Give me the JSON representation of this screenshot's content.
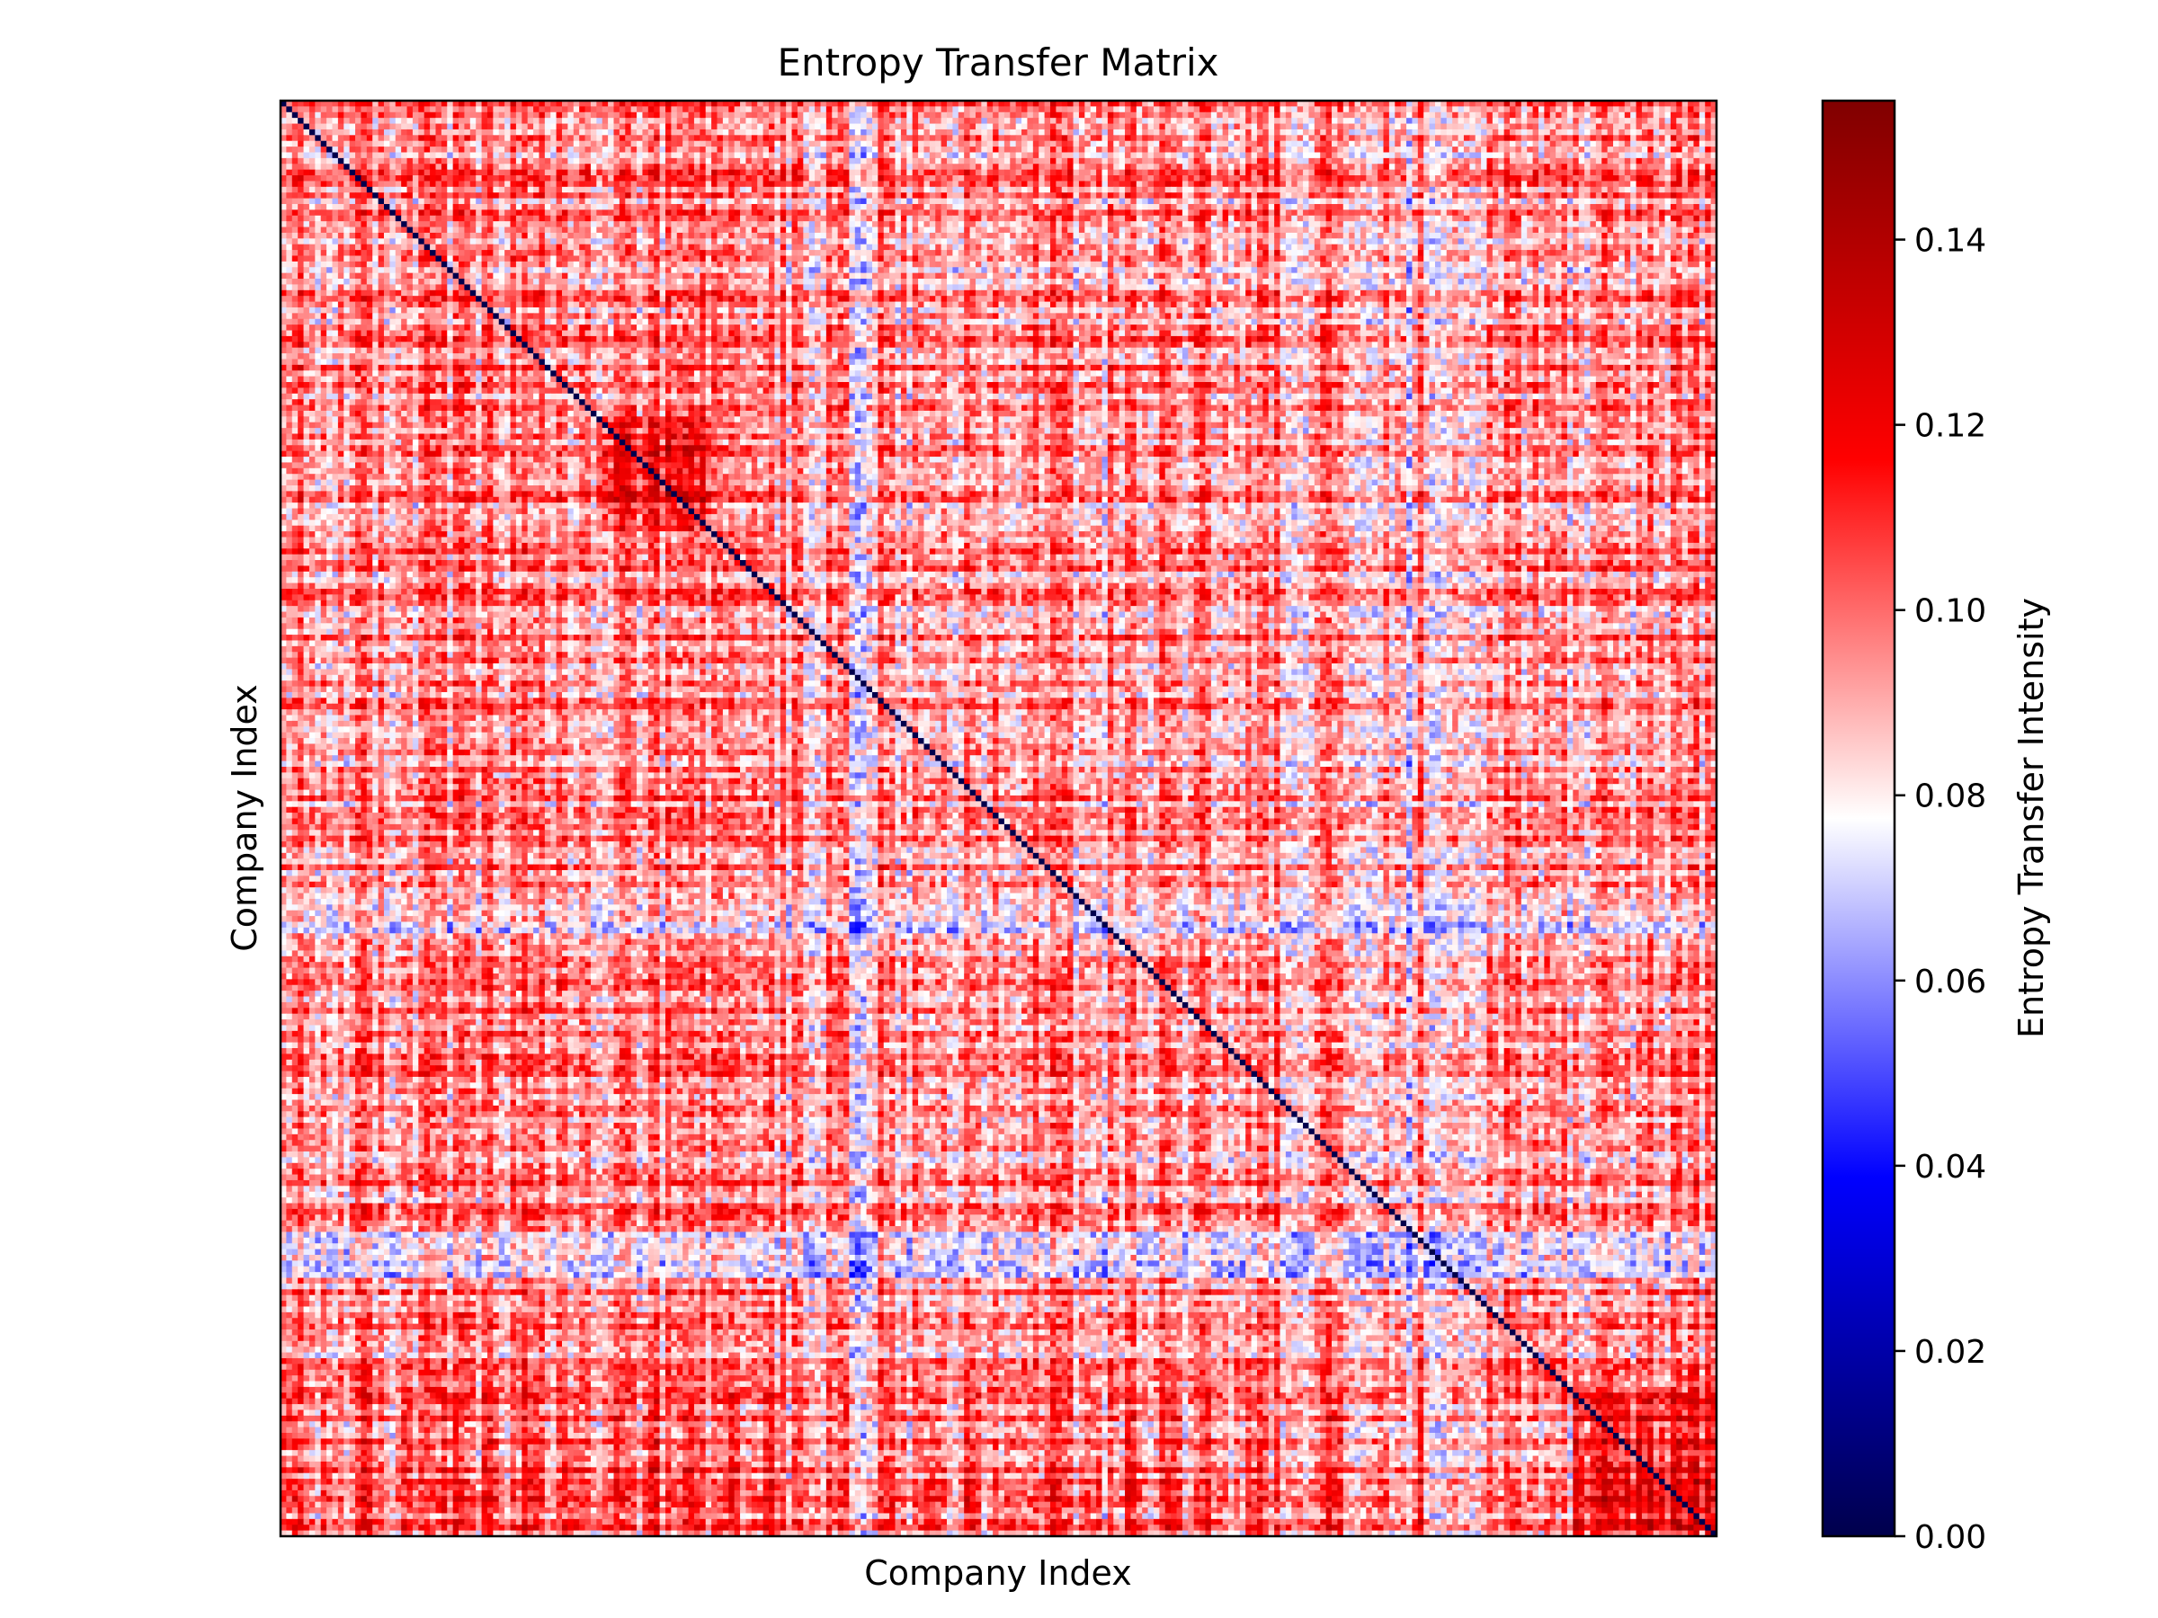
{
  "chart_data": {
    "type": "heatmap",
    "title": "Entropy Transfer Matrix",
    "xlabel": "Company Index",
    "ylabel": "Company Index",
    "n_companies": 250,
    "xticks": [],
    "yticks": [],
    "colormap": "seismic",
    "colormap_stops": [
      "#00004c",
      "#0000ff",
      "#ffffff",
      "#ff0000",
      "#800000"
    ],
    "colorbar": {
      "label": "Entropy Transfer Intensity",
      "range": [
        0.0,
        0.155
      ],
      "center": 0.0775,
      "ticks": [
        0.0,
        0.02,
        0.04,
        0.06,
        0.08,
        0.1,
        0.12,
        0.14
      ],
      "tick_labels": [
        "0.00",
        "0.02",
        "0.04",
        "0.06",
        "0.08",
        "0.10",
        "0.12",
        "0.14"
      ]
    },
    "diagonal_value": 0.0,
    "typical_range": [
      0.06,
      0.13
    ],
    "typical_mean": 0.095,
    "low_columns_approx": [
      93,
      100,
      142,
      195,
      200
    ],
    "low_rows_approx": [
      142,
      198,
      202
    ],
    "high_blocks": [
      {
        "rows": [
          55,
          75
        ],
        "cols": [
          55,
          75
        ],
        "value": 0.12
      },
      {
        "rows": [
          225,
          250
        ],
        "cols": [
          225,
          250
        ],
        "value": 0.125
      }
    ]
  }
}
